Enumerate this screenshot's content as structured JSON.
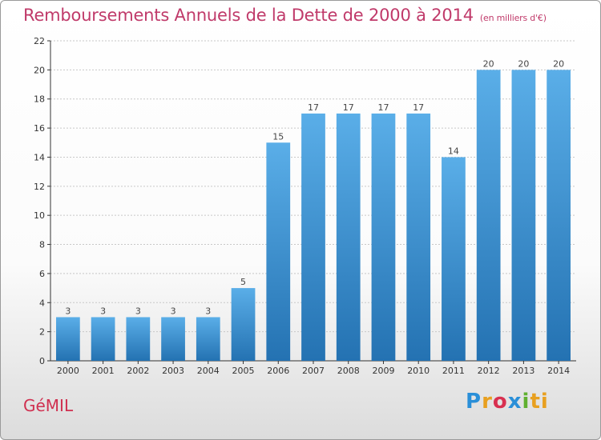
{
  "header": {
    "title": "Remboursements Annuels de la Dette de 2000 à 2014",
    "subtitle": "(en milliers d'€)"
  },
  "footer": {
    "commune": "GéMIL",
    "logo_letters": [
      "P",
      "r",
      "o",
      "x",
      "i",
      "ti"
    ]
  },
  "colors": {
    "bar_top": "#5aaee8",
    "bar_bottom": "#2472b2",
    "axis": "#333333",
    "grid": "#c8c8c8",
    "title": "#c03a6a"
  },
  "chart_data": {
    "type": "bar",
    "title": "Remboursements Annuels de la Dette de 2000 à 2014",
    "subtitle": "(en milliers d'€)",
    "xlabel": "",
    "ylabel": "",
    "categories": [
      "2000",
      "2001",
      "2002",
      "2003",
      "2004",
      "2005",
      "2006",
      "2007",
      "2008",
      "2009",
      "2010",
      "2011",
      "2012",
      "2013",
      "2014"
    ],
    "values": [
      3,
      3,
      3,
      3,
      3,
      5,
      15,
      17,
      17,
      17,
      17,
      14,
      20,
      20,
      20
    ],
    "ylim": [
      0,
      22
    ],
    "yticks": [
      0,
      2,
      4,
      6,
      8,
      10,
      12,
      14,
      16,
      18,
      20,
      22
    ],
    "grid": true,
    "legend": "none"
  }
}
